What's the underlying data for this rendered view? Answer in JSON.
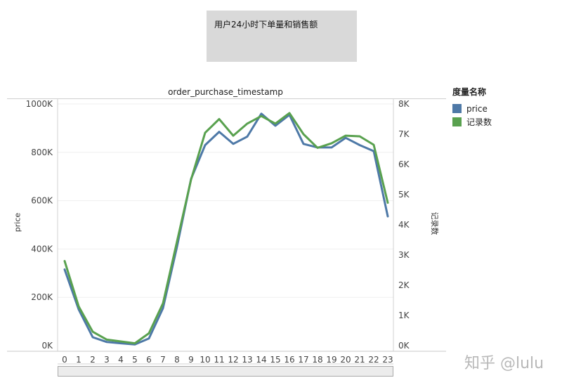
{
  "title": "用户24小时下单量和销售额",
  "column_header": "order_purchase_timestamp",
  "legend": {
    "title": "度量名称",
    "items": [
      {
        "label": "price",
        "color": "#4e79a7"
      },
      {
        "label": "记录数",
        "color": "#59a14f"
      }
    ]
  },
  "watermark": "知乎 @lulu",
  "chart_data": {
    "type": "line",
    "x": [
      0,
      1,
      2,
      3,
      4,
      5,
      6,
      7,
      8,
      9,
      10,
      11,
      12,
      13,
      14,
      15,
      16,
      17,
      18,
      19,
      20,
      21,
      22,
      23
    ],
    "xlabel": "",
    "ylabel_left": "price",
    "ylabel_right": "记录数",
    "left_axis": {
      "min": 0,
      "max": 1000000,
      "ticks": [
        0,
        200000,
        400000,
        600000,
        800000,
        1000000
      ],
      "tick_labels": [
        "0K",
        "200K",
        "400K",
        "600K",
        "800K",
        "1000K"
      ]
    },
    "right_axis": {
      "min": 0,
      "max": 8000,
      "ticks": [
        0,
        1000,
        2000,
        3000,
        4000,
        5000,
        6000,
        7000,
        8000
      ],
      "tick_labels": [
        "0K",
        "1K",
        "2K",
        "3K",
        "4K",
        "5K",
        "6K",
        "7K",
        "8K"
      ]
    },
    "series": [
      {
        "name": "price",
        "axis": "left",
        "color": "#4e79a7",
        "values": [
          315000,
          150000,
          35000,
          15000,
          10000,
          5000,
          30000,
          155000,
          410000,
          690000,
          830000,
          885000,
          835000,
          865000,
          960000,
          910000,
          955000,
          835000,
          820000,
          820000,
          860000,
          830000,
          805000,
          535000
        ]
      },
      {
        "name": "记录数",
        "axis": "right",
        "color": "#59a14f",
        "values": [
          2800,
          1300,
          460,
          200,
          140,
          80,
          410,
          1400,
          3450,
          5500,
          7050,
          7500,
          6950,
          7350,
          7600,
          7350,
          7700,
          7000,
          6550,
          6700,
          6950,
          6930,
          6650,
          4730
        ]
      }
    ],
    "grid": true
  }
}
